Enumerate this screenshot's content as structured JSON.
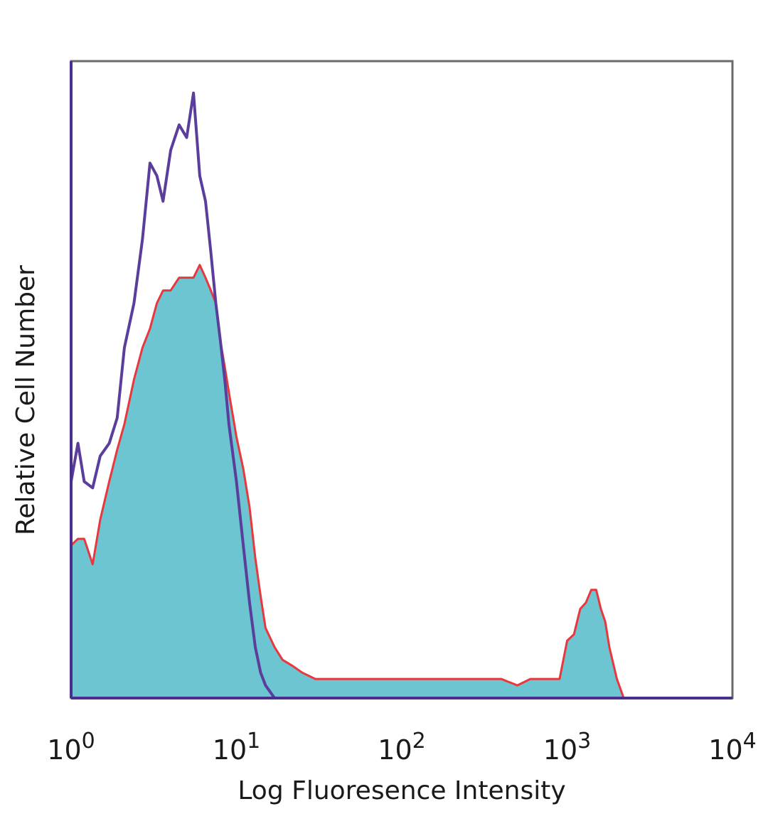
{
  "chart_data": {
    "type": "area",
    "title": "",
    "xlabel": "Log Fluoresence Intensity",
    "ylabel": "Relative Cell Number",
    "x_scale": "log",
    "xlim": [
      1,
      10000
    ],
    "ylim": [
      0,
      100
    ],
    "x_ticks": [
      {
        "value": 1,
        "base": "10",
        "exp": "0"
      },
      {
        "value": 10,
        "base": "10",
        "exp": "1"
      },
      {
        "value": 100,
        "base": "10",
        "exp": "2"
      },
      {
        "value": 1000,
        "base": "10",
        "exp": "3"
      },
      {
        "value": 10000,
        "base": "10",
        "exp": "4"
      }
    ],
    "grid": false,
    "legend": "none",
    "series": [
      {
        "style": "filled",
        "fill_color": "#6cc5d0",
        "line_color": "#e8373d",
        "x": [
          1,
          1.1,
          1.2,
          1.35,
          1.5,
          1.7,
          1.9,
          2.1,
          2.4,
          2.7,
          3.0,
          3.3,
          3.6,
          4.0,
          4.5,
          5.0,
          5.5,
          6.0,
          6.5,
          7.0,
          7.5,
          8.0,
          8.5,
          9.0,
          10,
          11,
          12,
          13,
          14,
          15,
          17,
          19,
          22,
          25,
          30,
          40,
          50,
          70,
          100,
          150,
          200,
          300,
          400,
          500,
          600,
          700,
          800,
          900,
          1000,
          1100,
          1200,
          1300,
          1400,
          1500,
          1600,
          1700,
          1800,
          2000,
          2200
        ],
        "y": [
          24,
          25,
          25,
          21,
          28,
          34,
          39,
          43,
          50,
          55,
          58,
          62,
          64,
          64,
          66,
          66,
          66,
          68,
          66,
          64,
          62,
          56,
          52,
          48,
          41,
          36,
          30,
          22,
          16,
          11,
          8,
          6,
          5,
          4,
          3,
          3,
          3,
          3,
          3,
          3,
          3,
          3,
          3,
          2,
          3,
          3,
          3,
          3,
          9,
          10,
          14,
          15,
          17,
          17,
          14,
          12,
          8,
          3,
          0
        ]
      },
      {
        "style": "line",
        "line_color": "#5b3d9c",
        "x": [
          1,
          1.1,
          1.2,
          1.35,
          1.5,
          1.7,
          1.9,
          2.1,
          2.4,
          2.7,
          3.0,
          3.3,
          3.6,
          4.0,
          4.5,
          5.0,
          5.5,
          6.0,
          6.5,
          7.0,
          7.5,
          8.0,
          8.5,
          9.0,
          10,
          11,
          12,
          13,
          14,
          15,
          17,
          20
        ],
        "y": [
          34,
          40,
          34,
          33,
          38,
          40,
          44,
          55,
          62,
          72,
          84,
          82,
          78,
          86,
          90,
          88,
          95,
          82,
          78,
          70,
          62,
          56,
          50,
          43,
          34,
          24,
          15,
          8,
          4,
          2,
          0,
          0
        ]
      }
    ]
  }
}
